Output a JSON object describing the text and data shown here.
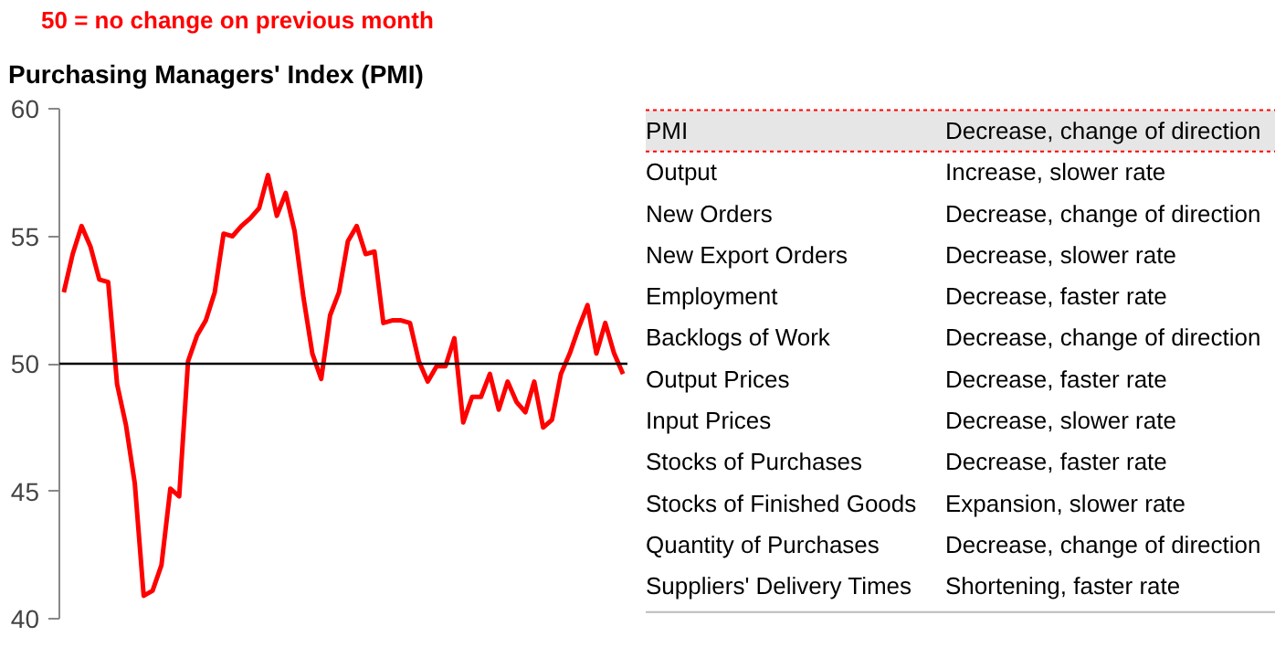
{
  "chart_data": [
    {
      "type": "line",
      "title": "Purchasing Managers' Index (PMI)",
      "subtitle": "50 =  no change on previous month",
      "categories": [
        null,
        null,
        null,
        null,
        null,
        null,
        null,
        null,
        null,
        null,
        null,
        null,
        null,
        null,
        null,
        null,
        null,
        null,
        null,
        null,
        null,
        null,
        null,
        null,
        null,
        null,
        null,
        null,
        null,
        null,
        null,
        null,
        null,
        null,
        null,
        null,
        null,
        null,
        null,
        null,
        null,
        null,
        null,
        null,
        null,
        null,
        null,
        null,
        null,
        null,
        null,
        null,
        null,
        null,
        null,
        null,
        null,
        null,
        null,
        null,
        null,
        null,
        null,
        null
      ],
      "series": [
        {
          "color": "#ff0000",
          "values": [
            52.8,
            54.3,
            55.4,
            54.6,
            53.3,
            53.2,
            49.2,
            47.6,
            45.3,
            40.9,
            41.1,
            42.1,
            45.1,
            44.8,
            50.1,
            51.1,
            51.7,
            52.8,
            55.1,
            55.0,
            55.4,
            55.7,
            56.1,
            57.4,
            55.8,
            56.7,
            55.2,
            52.6,
            50.4,
            49.4,
            51.9,
            52.8,
            54.8,
            55.4,
            54.3,
            54.4,
            51.6,
            51.7,
            51.7,
            51.6,
            50.1,
            49.3,
            49.9,
            49.9,
            51.0,
            47.7,
            48.7,
            48.7,
            49.6,
            48.2,
            49.3,
            48.5,
            48.1,
            49.3,
            47.5,
            47.8,
            49.6,
            50.4,
            51.4,
            52.3,
            50.4,
            51.6,
            50.4,
            49.6
          ]
        }
      ],
      "ylim": [
        40,
        60
      ],
      "yticks": [
        40,
        45,
        50,
        55,
        60
      ],
      "tick_labels": "y",
      "grid": false,
      "ref_lines": [
        {
          "axis": "y",
          "value": 50,
          "color": "#000000"
        }
      ]
    },
    {
      "type": "other",
      "annotations": [
        "PMI",
        "Decrease, change of direction",
        "Output",
        "Increase, slower rate",
        "New Orders",
        "Decrease, change of direction",
        "New Export Orders",
        "Decrease, slower rate",
        "Employment",
        "Decrease, faster rate",
        "Backlogs of Work",
        "Decrease, change of direction",
        "Output Prices",
        "Decrease, faster rate",
        "Input Prices",
        "Decrease, slower rate",
        "Stocks of Purchases",
        "Decrease, faster rate",
        "Stocks of Finished Goods",
        "Expansion, slower rate",
        "Quantity of Purchases",
        "Decrease, change of direction",
        "Suppliers' Delivery Times",
        "Shortening, faster rate"
      ]
    }
  ]
}
